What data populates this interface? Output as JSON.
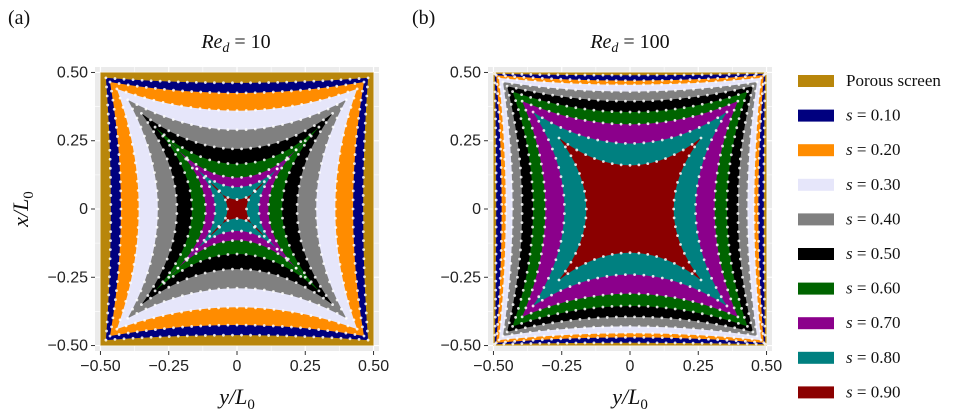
{
  "chart_data": [
    {
      "type": "area",
      "panel_label": "(a)",
      "title_main": "Re",
      "title_sub": "d",
      "title_rest": " = 10",
      "xlabel_main": "y/L",
      "xlabel_sub": "0",
      "ylabel_main": "x/L",
      "ylabel_sub": "0",
      "xlim": [
        -0.52,
        0.52
      ],
      "ylim": [
        -0.52,
        0.52
      ],
      "xticks": [
        -0.5,
        -0.25,
        0,
        0.25,
        0.5
      ],
      "xtick_labels": [
        "−0.50",
        "−0.25",
        "0",
        "0.25",
        "0.50"
      ],
      "yticks": [
        -0.5,
        -0.25,
        0,
        0.25,
        0.5
      ],
      "ytick_labels": [
        "−0.50",
        "−0.25",
        "0",
        "0.25",
        "0.50"
      ],
      "grid": true,
      "screen_half_width": 0.5,
      "contours": [
        {
          "s": 0.1,
          "corner": 0.48,
          "mid": 0.462
        },
        {
          "s": 0.2,
          "corner": 0.465,
          "mid": 0.425
        },
        {
          "s": 0.3,
          "corner": 0.44,
          "mid": 0.36
        },
        {
          "s": 0.4,
          "corner": 0.4,
          "mid": 0.29
        },
        {
          "s": 0.5,
          "corner": 0.35,
          "mid": 0.22
        },
        {
          "s": 0.6,
          "corner": 0.3,
          "mid": 0.165
        },
        {
          "s": 0.7,
          "corner": 0.25,
          "mid": 0.115
        },
        {
          "s": 0.8,
          "corner": 0.18,
          "mid": 0.08
        },
        {
          "s": 0.9,
          "corner": 0.1,
          "mid": 0.035
        }
      ]
    },
    {
      "type": "area",
      "panel_label": "(b)",
      "title_main": "Re",
      "title_sub": "d",
      "title_rest": " = 100",
      "xlabel_main": "y/L",
      "xlabel_sub": "0",
      "ylabel_main": "",
      "ylabel_sub": "",
      "xlim": [
        -0.52,
        0.52
      ],
      "ylim": [
        -0.52,
        0.52
      ],
      "xticks": [
        -0.5,
        -0.25,
        0,
        0.25,
        0.5
      ],
      "xtick_labels": [
        "−0.50",
        "−0.25",
        "0",
        "0.25",
        "0.50"
      ],
      "yticks": [
        -0.5,
        -0.25,
        0,
        0.25,
        0.5
      ],
      "ytick_labels": [
        "−0.50",
        "−0.25",
        "0",
        "0.25",
        "0.50"
      ],
      "grid": true,
      "screen_half_width": 0.5,
      "contours": [
        {
          "s": 0.1,
          "corner": 0.495,
          "mid": 0.49
        },
        {
          "s": 0.2,
          "corner": 0.49,
          "mid": 0.47
        },
        {
          "s": 0.3,
          "corner": 0.48,
          "mid": 0.455
        },
        {
          "s": 0.4,
          "corner": 0.465,
          "mid": 0.43
        },
        {
          "s": 0.5,
          "corner": 0.45,
          "mid": 0.395
        },
        {
          "s": 0.6,
          "corner": 0.43,
          "mid": 0.355
        },
        {
          "s": 0.7,
          "corner": 0.395,
          "mid": 0.31
        },
        {
          "s": 0.8,
          "corner": 0.355,
          "mid": 0.24
        },
        {
          "s": 0.9,
          "corner": 0.26,
          "mid": 0.16
        }
      ]
    }
  ],
  "legend": {
    "placement": "right",
    "items": [
      {
        "label": "Porous screen",
        "color": "#b8860b",
        "italic_s": false
      },
      {
        "label": " = 0.10",
        "color": "#00007f",
        "italic_s": true
      },
      {
        "label": " = 0.20",
        "color": "#ff8c00",
        "italic_s": true
      },
      {
        "label": " = 0.30",
        "color": "#e6e6fa",
        "italic_s": true
      },
      {
        "label": " = 0.40",
        "color": "#808080",
        "italic_s": true
      },
      {
        "label": " = 0.50",
        "color": "#000000",
        "italic_s": true
      },
      {
        "label": " = 0.60",
        "color": "#006400",
        "italic_s": true
      },
      {
        "label": " = 0.70",
        "color": "#8b008b",
        "italic_s": true
      },
      {
        "label": " = 0.80",
        "color": "#008080",
        "italic_s": true
      },
      {
        "label": " = 0.90",
        "color": "#8b0000",
        "italic_s": true
      }
    ],
    "s_symbol": "s"
  },
  "colors": {
    "screen": "#b8860b",
    "levels": [
      "#00007f",
      "#ff8c00",
      "#e6e6fa",
      "#808080",
      "#000000",
      "#006400",
      "#8b008b",
      "#008080",
      "#8b0000"
    ],
    "plot_bg": "#ebebeb",
    "grid": "#ffffff",
    "markers": "#ffffff"
  }
}
